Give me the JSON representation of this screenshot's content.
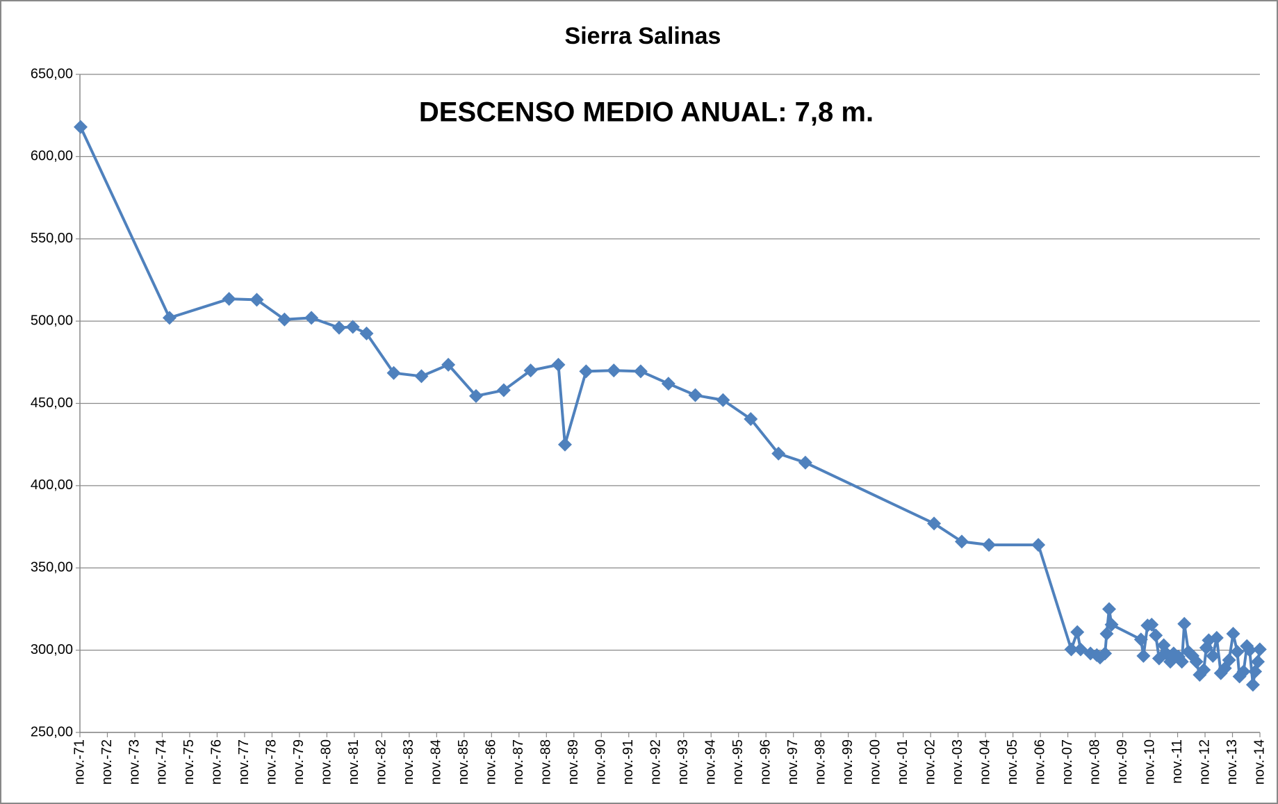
{
  "chart_data": {
    "type": "line",
    "title": "Sierra Salinas",
    "annotation": "DESCENSO MEDIO ANUAL: 7,8 m.",
    "x": [
      1971.9,
      1975.14,
      1977.31,
      1978.32,
      1979.33,
      1980.31,
      1981.32,
      1981.82,
      1982.32,
      1983.31,
      1984.32,
      1985.3,
      1986.31,
      1987.32,
      1988.3,
      1989.31,
      1989.55,
      1990.32,
      1991.33,
      1992.31,
      1993.32,
      1994.3,
      1995.31,
      1996.32,
      1997.33,
      1998.31,
      2003.0,
      2004.01,
      2005.0,
      2006.8,
      2008.0,
      2008.22,
      2008.34,
      2008.7,
      2008.93,
      2009.05,
      2009.23,
      2009.29,
      2009.38,
      2009.47,
      2010.54,
      2010.63,
      2010.78,
      2010.93,
      2011.08,
      2011.2,
      2011.37,
      2011.49,
      2011.61,
      2011.73,
      2011.91,
      2012.03,
      2012.12,
      2012.27,
      2012.42,
      2012.56,
      2012.68,
      2012.83,
      2012.92,
      2013.01,
      2013.16,
      2013.3,
      2013.45,
      2013.6,
      2013.75,
      2013.9,
      2014.05,
      2014.13,
      2014.28,
      2014.4,
      2014.5,
      2014.62,
      2014.7,
      2014.8,
      2014.87
    ],
    "series": [
      {
        "color": "#4f81bd",
        "values": [
          618,
          502,
          513.5,
          513,
          501,
          502,
          496,
          496.5,
          492.5,
          468.5,
          466.5,
          473.5,
          454.5,
          458,
          470,
          473.5,
          425,
          469.5,
          470,
          469.5,
          462,
          455,
          452,
          440.5,
          419.5,
          414,
          377,
          366,
          364,
          364,
          300.5,
          311,
          300.5,
          298,
          297,
          295.5,
          298,
          310,
          325,
          315.5,
          306.5,
          296.5,
          315,
          315.5,
          309,
          295,
          303,
          297.5,
          293,
          298,
          296,
          293,
          316,
          299,
          296.5,
          293,
          285,
          288,
          301.5,
          306,
          296.5,
          307.5,
          286,
          289,
          294,
          310,
          299,
          284,
          287,
          302.5,
          300,
          279,
          287,
          293,
          300.5
        ]
      }
    ],
    "xlim": [
      1971.875,
      2014.875
    ],
    "xticks": [
      {
        "value": 1971.875,
        "label": "nov.-71"
      },
      {
        "value": 1972.875,
        "label": "nov.-72"
      },
      {
        "value": 1973.875,
        "label": "nov.-73"
      },
      {
        "value": 1974.875,
        "label": "nov.-74"
      },
      {
        "value": 1975.875,
        "label": "nov.-75"
      },
      {
        "value": 1976.875,
        "label": "nov.-76"
      },
      {
        "value": 1977.875,
        "label": "nov.-77"
      },
      {
        "value": 1978.875,
        "label": "nov.-78"
      },
      {
        "value": 1979.875,
        "label": "nov.-79"
      },
      {
        "value": 1980.875,
        "label": "nov.-80"
      },
      {
        "value": 1981.875,
        "label": "nov.-81"
      },
      {
        "value": 1982.875,
        "label": "nov.-82"
      },
      {
        "value": 1983.875,
        "label": "nov.-83"
      },
      {
        "value": 1984.875,
        "label": "nov.-84"
      },
      {
        "value": 1985.875,
        "label": "nov.-85"
      },
      {
        "value": 1986.875,
        "label": "nov.-86"
      },
      {
        "value": 1987.875,
        "label": "nov.-87"
      },
      {
        "value": 1988.875,
        "label": "nov.-88"
      },
      {
        "value": 1989.875,
        "label": "nov.-89"
      },
      {
        "value": 1990.875,
        "label": "nov.-90"
      },
      {
        "value": 1991.875,
        "label": "nov.-91"
      },
      {
        "value": 1992.875,
        "label": "nov.-92"
      },
      {
        "value": 1993.875,
        "label": "nov.-93"
      },
      {
        "value": 1994.875,
        "label": "nov.-94"
      },
      {
        "value": 1995.875,
        "label": "nov.-95"
      },
      {
        "value": 1996.875,
        "label": "nov.-96"
      },
      {
        "value": 1997.875,
        "label": "nov.-97"
      },
      {
        "value": 1998.875,
        "label": "nov.-98"
      },
      {
        "value": 1999.875,
        "label": "nov.-99"
      },
      {
        "value": 2000.875,
        "label": "nov.-00"
      },
      {
        "value": 2001.875,
        "label": "nov.-01"
      },
      {
        "value": 2002.875,
        "label": "nov.-02"
      },
      {
        "value": 2003.875,
        "label": "nov.-03"
      },
      {
        "value": 2004.875,
        "label": "nov.-04"
      },
      {
        "value": 2005.875,
        "label": "nov.-05"
      },
      {
        "value": 2006.875,
        "label": "nov.-06"
      },
      {
        "value": 2007.875,
        "label": "nov.-07"
      },
      {
        "value": 2008.875,
        "label": "nov.-08"
      },
      {
        "value": 2009.875,
        "label": "nov.-09"
      },
      {
        "value": 2010.875,
        "label": "nov.-10"
      },
      {
        "value": 2011.875,
        "label": "nov.-11"
      },
      {
        "value": 2012.875,
        "label": "nov.-12"
      },
      {
        "value": 2013.875,
        "label": "nov.-13"
      },
      {
        "value": 2014.875,
        "label": "nov.-14"
      }
    ],
    "ylim": [
      250,
      650
    ],
    "yticks": [
      {
        "value": 250,
        "label": "250,00"
      },
      {
        "value": 300,
        "label": "300,00"
      },
      {
        "value": 350,
        "label": "350,00"
      },
      {
        "value": 400,
        "label": "400,00"
      },
      {
        "value": 450,
        "label": "450,00"
      },
      {
        "value": 500,
        "label": "500,00"
      },
      {
        "value": 550,
        "label": "550,00"
      },
      {
        "value": 600,
        "label": "600,00"
      },
      {
        "value": 650,
        "label": "650,00"
      }
    ],
    "grid": true,
    "marker": "diamond"
  }
}
